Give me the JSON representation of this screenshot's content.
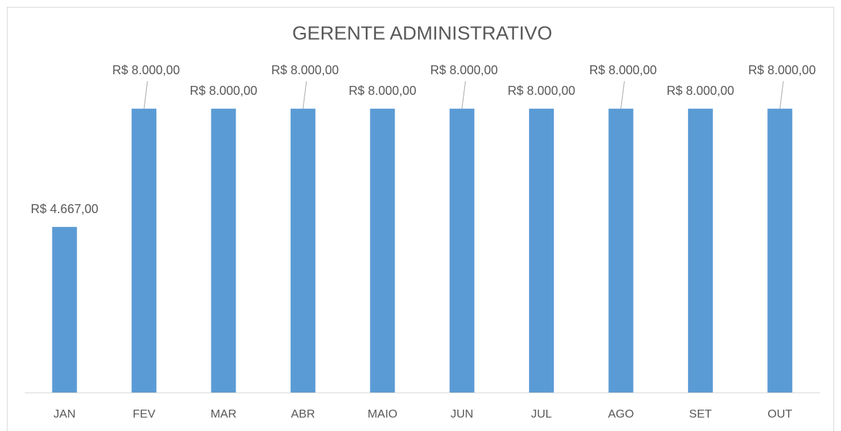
{
  "chart_data": {
    "type": "bar",
    "title": "GERENTE ADMINISTRATIVO",
    "categories": [
      "JAN",
      "FEV",
      "MAR",
      "ABR",
      "MAIO",
      "JUN",
      "JUL",
      "AGO",
      "SET",
      "OUT"
    ],
    "values": [
      4667,
      8000,
      8000,
      8000,
      8000,
      8000,
      8000,
      8000,
      8000,
      8000
    ],
    "value_labels": [
      "R$ 4.667,00",
      "R$ 8.000,00",
      "R$ 8.000,00",
      "R$ 8.000,00",
      "R$ 8.000,00",
      "R$ 8.000,00",
      "R$ 8.000,00",
      "R$ 8.000,00",
      "R$ 8.000,00",
      "R$ 8.000,00"
    ],
    "color": "#5b9bd5",
    "ylim": [
      0,
      9000
    ]
  }
}
